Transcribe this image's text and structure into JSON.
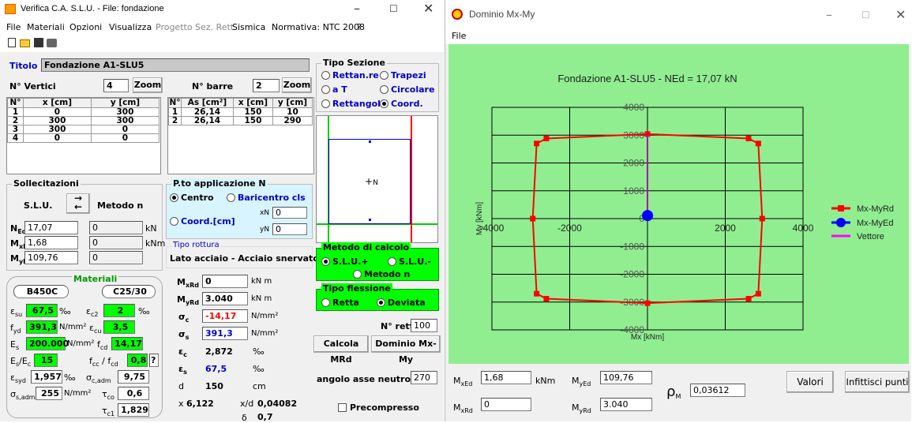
{
  "left_window": {
    "title": "Verifica C.A. S.L.U. - File: fondazione",
    "menu": [
      "File",
      "Materiali",
      "Opzioni",
      "Visualizza",
      "Progetto Sez. Rett.",
      "Sismica",
      "Normativa: NTC 2008",
      "?"
    ],
    "titolo_label": "Titolo :",
    "titolo_value": "Fondazione A1-SLU5",
    "nvertici_label": "N° Vertici",
    "nvertici_value": "4",
    "zoom_label": "Zoom",
    "nbarre_label": "N° barre",
    "nbarre_value": "2",
    "vert_headers": [
      "N°",
      "x [cm]",
      "y [cm]"
    ],
    "vert_rows": [
      [
        "1",
        "0",
        "300"
      ],
      [
        "2",
        "300",
        "300"
      ],
      [
        "3",
        "300",
        "0"
      ],
      [
        "4",
        "0",
        "0"
      ]
    ],
    "barre_headers": [
      "N°",
      "As [cm²]",
      "x [cm]",
      "y [cm]"
    ],
    "barre_rows": [
      [
        "1",
        "26,14",
        "150",
        "10"
      ],
      [
        "2",
        "26,14",
        "150",
        "290"
      ]
    ],
    "tipo_sezione": {
      "title": "Tipo Sezione",
      "options": [
        "Rettan.re",
        "Trapezi",
        "a T",
        "Circolare",
        "Rettangoli",
        "Coord."
      ],
      "selected": "Coord."
    },
    "preview_label": "N",
    "sollecitazioni": {
      "title": "Sollecitazioni",
      "slu": "S.L.U.",
      "metodo": "Metodo n",
      "ned": "17,07",
      "med_x": "1,68",
      "med_y": "109,76",
      "zero1": "0",
      "zero2": "0",
      "zero3": "0",
      "kn": "kN",
      "knm": "kNm"
    },
    "punto_app": {
      "title": "P.to applicazione N",
      "centro": "Centro",
      "baricentro": "Baricentro cls",
      "coord": "Coord.[cm]",
      "xn_label": "xN",
      "yn_label": "yN",
      "xn": "0",
      "yn": "0"
    },
    "tipo_rottura": {
      "title": "Tipo rottura",
      "value": "Lato acciaio - Acciaio snervato"
    },
    "metodo_calcolo": {
      "title": "Metodo di calcolo",
      "opt1": "S.L.U.+",
      "opt2": "S.L.U.-",
      "opt3": "Metodo n"
    },
    "tipo_flessione": {
      "title": "Tipo flessione",
      "retta": "Retta",
      "deviata": "Deviata"
    },
    "nrett_label": "N° rett.",
    "nrett_value": "100",
    "calcola_btn": "Calcola MRd",
    "dominio_btn": "Dominio Mx-My",
    "angolo_label": "angolo asse neutro θ°",
    "angolo_value": "270",
    "precompresso": "Precompresso",
    "materiali": {
      "title": "Materiali",
      "acciaio": "B450C",
      "cls": "C25/30",
      "esu": "67,5",
      "ec2": "2",
      "fyd": "391,3",
      "ecu": "3,5",
      "es": "200.000",
      "fcd": "14,17",
      "es_ec": "15",
      "fcc_fcd": "0,8",
      "esyd": "1,957",
      "sc_adm": "9,75",
      "ss_adm": "255",
      "tco": "0,6",
      "tc1": "1,829",
      "permil": "‰",
      "nmm2": "N/mm²",
      "q": "?"
    },
    "risultati": {
      "mxrd": "0",
      "myrd": "3.040",
      "sc": "-14,17",
      "ss": "391,3",
      "ec": "2,872",
      "es": "67,5",
      "d": "150",
      "x": "6,122",
      "xd": "0,04082",
      "delta": "0,7",
      "knm": "kN m",
      "nmm2": "N/mm²",
      "permil": "‰",
      "cm": "cm"
    }
  },
  "right_window": {
    "title": "Dominio Mx-My",
    "menu": "File",
    "chart_title": "Fondazione A1-SLU5 - NEd = 17,07 kN",
    "mx_label": "Mx [kNm]",
    "my_label": "My [kNm]",
    "legend": [
      "Mx-MyRd",
      "Mx-MyEd",
      "Vettore"
    ],
    "mxed": "1,68",
    "myed": "109,76",
    "rho": "0,03612",
    "mxrd": "0",
    "myrd": "3.040",
    "knm": "kNm",
    "valori_btn": "Valori",
    "infittisci_btn": "Infittisci punti"
  },
  "colors": {
    "domain_red": "#ff0000",
    "ed_blue": "#0000ff",
    "vector": "#b000b0",
    "plot_bg": "#90ee90",
    "accent_green": "#00ff00"
  },
  "chart_data": {
    "type": "line",
    "title": "Fondazione A1-SLU5 - NEd = 17,07 kN",
    "xlabel": "Mx [kNm]",
    "ylabel": "My [kNm]",
    "xlim": [
      -4000,
      4000
    ],
    "ylim": [
      -4000,
      4000
    ],
    "x_ticks": [
      "-4000",
      "-2000",
      "0",
      "2000",
      "4000"
    ],
    "y_ticks": [
      "4000",
      "3000",
      "2000",
      "1000",
      "0",
      "-1000",
      "-2000",
      "-3000",
      "-4000"
    ],
    "grid": true,
    "legend_position": "right",
    "series": [
      {
        "name": "Mx-MyRd",
        "points": [
          [
            0,
            3040
          ],
          [
            2600,
            2880
          ],
          [
            2850,
            2700
          ],
          [
            2950,
            0
          ],
          [
            2850,
            -2700
          ],
          [
            2600,
            -2880
          ],
          [
            0,
            -3040
          ],
          [
            -2600,
            -2880
          ],
          [
            -2850,
            -2700
          ],
          [
            -2950,
            0
          ],
          [
            -2850,
            2700
          ],
          [
            -2600,
            2880
          ],
          [
            0,
            3040
          ]
        ]
      },
      {
        "name": "Mx-MyEd",
        "points": [
          [
            1.68,
            109.76
          ]
        ]
      },
      {
        "name": "Vettore",
        "points": [
          [
            0,
            0
          ],
          [
            0,
            3040
          ]
        ]
      }
    ]
  }
}
